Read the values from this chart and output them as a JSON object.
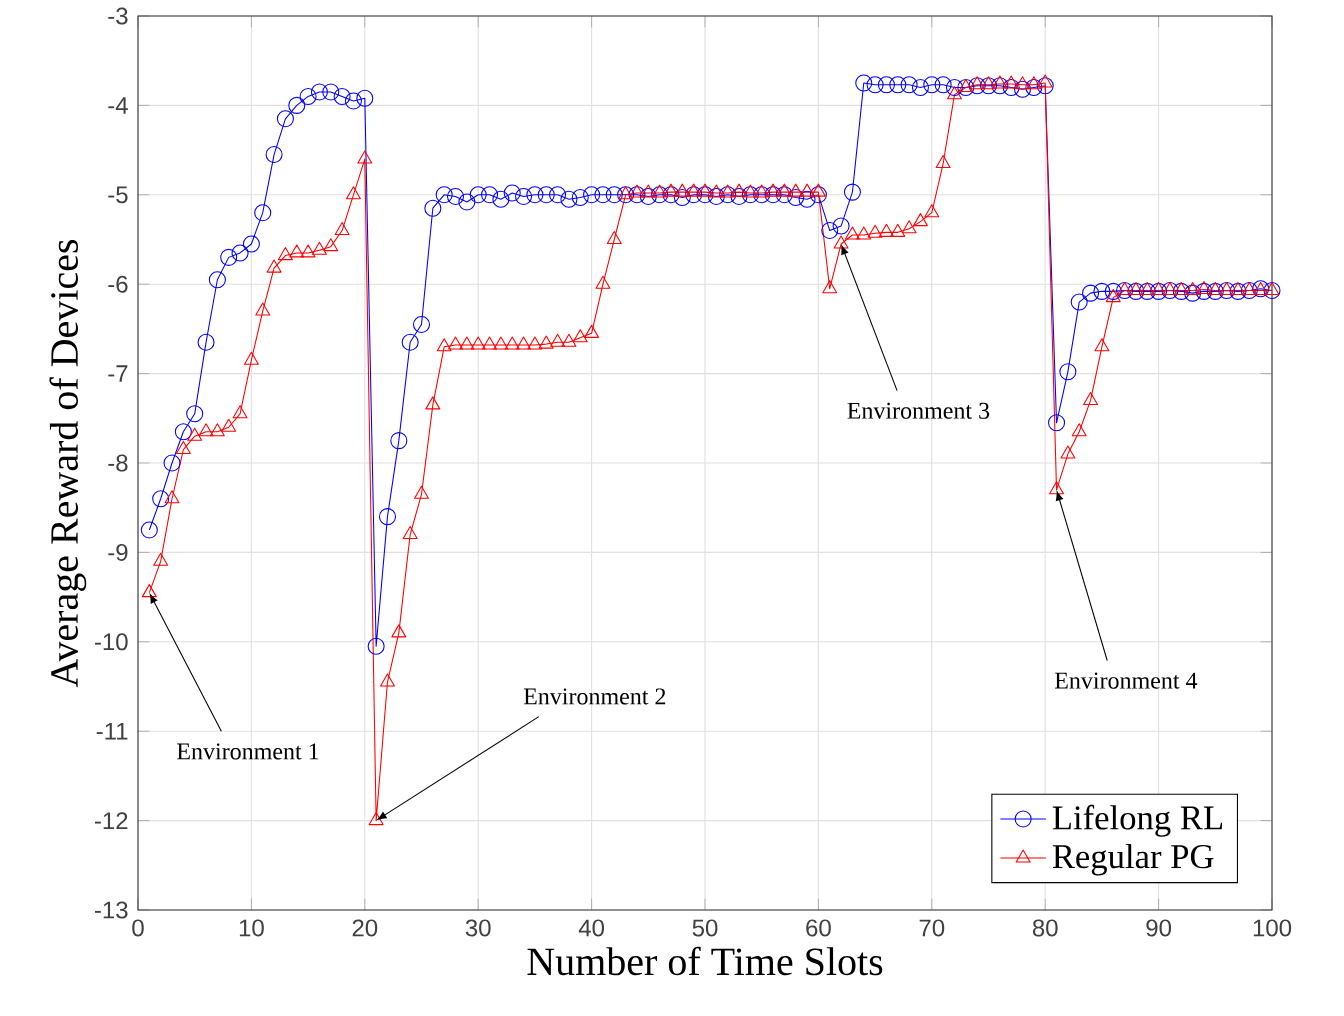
{
  "chart_data": {
    "type": "line",
    "xlabel": "Number of Time Slots",
    "ylabel": "Average Reward of Devices",
    "x": [
      1,
      2,
      3,
      4,
      5,
      6,
      7,
      8,
      9,
      10,
      11,
      12,
      13,
      14,
      15,
      16,
      17,
      18,
      19,
      20,
      21,
      22,
      23,
      24,
      25,
      26,
      27,
      28,
      29,
      30,
      31,
      32,
      33,
      34,
      35,
      36,
      37,
      38,
      39,
      40,
      41,
      42,
      43,
      44,
      45,
      46,
      47,
      48,
      49,
      50,
      51,
      52,
      53,
      54,
      55,
      56,
      57,
      58,
      59,
      60,
      61,
      62,
      63,
      64,
      65,
      66,
      67,
      68,
      69,
      70,
      71,
      72,
      73,
      74,
      75,
      76,
      77,
      78,
      79,
      80,
      81,
      82,
      83,
      84,
      85,
      86,
      87,
      88,
      89,
      90,
      91,
      92,
      93,
      94,
      95,
      96,
      97,
      98,
      99,
      100
    ],
    "series": [
      {
        "name": "Lifelong RL",
        "color": "#0000ff",
        "marker": "circle",
        "values": [
          -8.75,
          -8.4,
          -8.0,
          -7.65,
          -7.45,
          -6.65,
          -5.95,
          -5.7,
          -5.65,
          -5.55,
          -5.2,
          -4.55,
          -4.15,
          -4.0,
          -3.9,
          -3.85,
          -3.85,
          -3.9,
          -3.95,
          -3.92,
          -10.05,
          -8.6,
          -7.75,
          -6.65,
          -6.45,
          -5.15,
          -5.0,
          -5.02,
          -5.08,
          -5.0,
          -5.0,
          -5.05,
          -4.98,
          -5.02,
          -5.0,
          -5.0,
          -5.0,
          -5.05,
          -5.03,
          -5.0,
          -5.0,
          -5.0,
          -5.0,
          -5.0,
          -5.02,
          -5.0,
          -5.0,
          -5.03,
          -5.0,
          -5.0,
          -5.02,
          -5.0,
          -5.02,
          -5.0,
          -5.0,
          -5.0,
          -5.0,
          -5.03,
          -5.05,
          -5.0,
          -5.4,
          -5.35,
          -4.97,
          -3.75,
          -3.77,
          -3.77,
          -3.77,
          -3.77,
          -3.8,
          -3.77,
          -3.77,
          -3.8,
          -3.8,
          -3.78,
          -3.78,
          -3.78,
          -3.8,
          -3.82,
          -3.8,
          -3.78,
          -7.55,
          -6.98,
          -6.2,
          -6.1,
          -6.08,
          -6.08,
          -6.07,
          -6.08,
          -6.08,
          -6.08,
          -6.07,
          -6.08,
          -6.1,
          -6.08,
          -6.08,
          -6.07,
          -6.08,
          -6.07,
          -6.05,
          -6.07
        ]
      },
      {
        "name": "Regular PG",
        "color": "#ff0000",
        "marker": "triangle",
        "values": [
          -9.45,
          -9.1,
          -8.4,
          -7.85,
          -7.7,
          -7.65,
          -7.65,
          -7.6,
          -7.45,
          -6.85,
          -6.3,
          -5.82,
          -5.68,
          -5.65,
          -5.65,
          -5.62,
          -5.58,
          -5.4,
          -5.0,
          -4.6,
          -12.0,
          -10.45,
          -9.9,
          -8.8,
          -8.35,
          -7.35,
          -6.7,
          -6.68,
          -6.68,
          -6.68,
          -6.68,
          -6.68,
          -6.68,
          -6.68,
          -6.68,
          -6.67,
          -6.65,
          -6.65,
          -6.6,
          -6.55,
          -6.0,
          -5.5,
          -5.0,
          -4.98,
          -4.98,
          -4.98,
          -4.97,
          -4.97,
          -4.97,
          -4.97,
          -4.98,
          -4.98,
          -4.97,
          -4.98,
          -4.98,
          -4.97,
          -4.97,
          -4.97,
          -4.97,
          -4.97,
          -6.05,
          -5.55,
          -5.45,
          -5.45,
          -5.43,
          -5.42,
          -5.42,
          -5.38,
          -5.3,
          -5.2,
          -4.65,
          -3.88,
          -3.8,
          -3.77,
          -3.77,
          -3.76,
          -3.76,
          -3.77,
          -3.77,
          -3.75,
          -8.3,
          -7.9,
          -7.65,
          -7.3,
          -6.7,
          -6.15,
          -6.07,
          -6.07,
          -6.07,
          -6.07,
          -6.07,
          -6.07,
          -6.07,
          -6.06,
          -6.07,
          -6.07,
          -6.07,
          -6.07,
          -6.07,
          -6.07
        ]
      }
    ],
    "xlim": [
      0,
      100
    ],
    "ylim": [
      -13,
      -3
    ],
    "xticks": [
      0,
      10,
      20,
      30,
      40,
      50,
      60,
      70,
      80,
      90,
      100
    ],
    "yticks": [
      -13,
      -12,
      -11,
      -10,
      -9,
      -8,
      -7,
      -6,
      -5,
      -4,
      -3
    ],
    "grid": true,
    "legend": "bottom right",
    "line_style": "solid",
    "annotations": [
      {
        "text": "Environment 1",
        "x": 1,
        "y": -9.45
      },
      {
        "text": "Environment 2",
        "x": 21,
        "y": -12.0
      },
      {
        "text": "Environment 3",
        "x": 62,
        "y": -5.55
      },
      {
        "text": "Environment 4",
        "x": 81,
        "y": -8.3
      }
    ]
  }
}
